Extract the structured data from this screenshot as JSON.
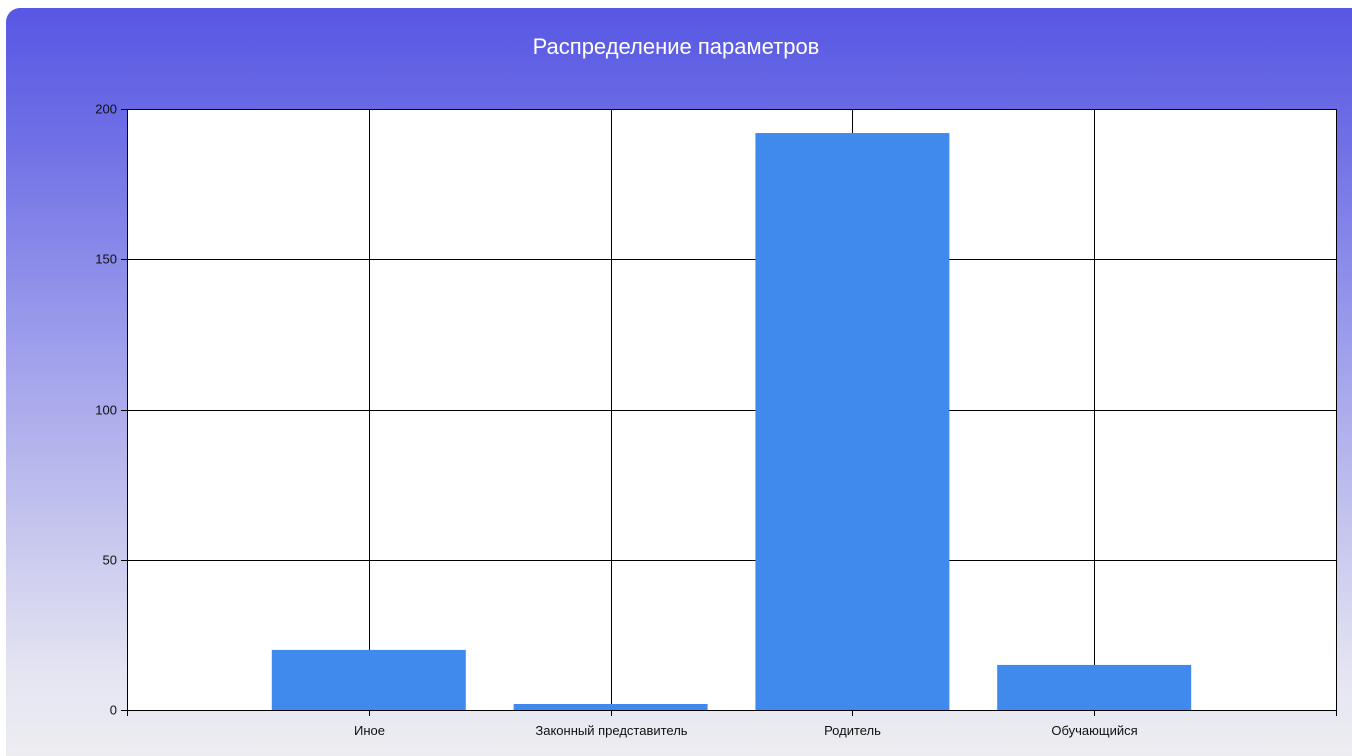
{
  "chart_data": {
    "type": "bar",
    "title": "Распределение параметров",
    "xlabel": "",
    "ylabel": "",
    "categories": [
      "Иное",
      "Законный представитель",
      "Родитель",
      "Обучающийся"
    ],
    "values": [
      20,
      2,
      192,
      15
    ],
    "ylim": [
      0,
      200
    ],
    "yticks": [
      0,
      50,
      100,
      150,
      200
    ],
    "grid": true,
    "legend": "none",
    "colors": {
      "bar": "#418aed",
      "plot_background": "#ffffff",
      "grid": "#000000",
      "title_text": "#ffffff",
      "panel_gradient_top": "#5757e4",
      "panel_gradient_bottom": "#ececf1"
    }
  }
}
